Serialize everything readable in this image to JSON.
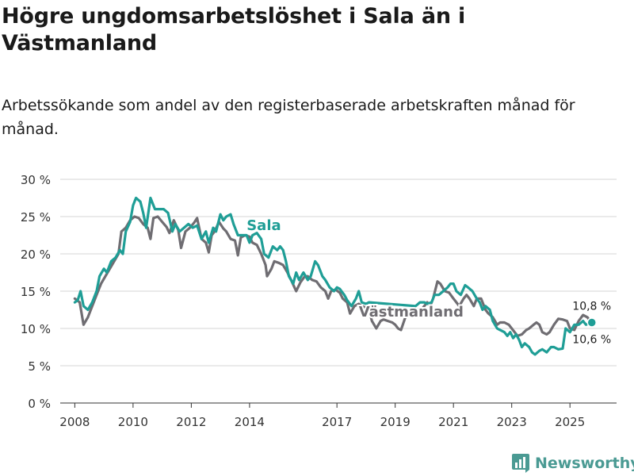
{
  "title": "Högre ungdomsarbetslöshet i Sala än i Västmanland",
  "subtitle": "Arbetssökande som andel av den registerbaserade arbetskraften månad för månad.",
  "brand": {
    "name": "Newsworthy",
    "icon": "bar-chart-logo-icon",
    "color": "#4a9a93"
  },
  "chart_data": {
    "type": "line",
    "x_unit": "year (decimal)",
    "ylim": [
      0,
      30
    ],
    "y_ticks": [
      0,
      5,
      10,
      15,
      20,
      25,
      30
    ],
    "y_tick_labels": [
      "0 %",
      "5 %",
      "10 %",
      "15 %",
      "20 %",
      "25 %",
      "30 %"
    ],
    "x_ticks": [
      2008,
      2010,
      2012,
      2014,
      2017,
      2019,
      2021,
      2023,
      2025
    ],
    "x_tick_labels": [
      "2008",
      "2010",
      "2012",
      "2014",
      "2017",
      "2019",
      "2021",
      "2023",
      "2025"
    ],
    "grid": true,
    "series": [
      {
        "name": "Västmanland",
        "label": "Västmanland",
        "color": "#6f6d72",
        "end_label": "10,6 %",
        "points": [
          [
            2008.0,
            14.0
          ],
          [
            2008.17,
            13.5
          ],
          [
            2008.3,
            10.5
          ],
          [
            2008.45,
            11.5
          ],
          [
            2008.6,
            13.0
          ],
          [
            2008.75,
            14.5
          ],
          [
            2008.9,
            16.0
          ],
          [
            2009.05,
            17.0
          ],
          [
            2009.2,
            18.0
          ],
          [
            2009.35,
            19.0
          ],
          [
            2009.5,
            20.0
          ],
          [
            2009.6,
            23.0
          ],
          [
            2009.75,
            23.5
          ],
          [
            2009.9,
            24.5
          ],
          [
            2010.05,
            25.0
          ],
          [
            2010.2,
            24.8
          ],
          [
            2010.35,
            24.0
          ],
          [
            2010.5,
            23.5
          ],
          [
            2010.6,
            22.0
          ],
          [
            2010.7,
            24.8
          ],
          [
            2010.85,
            25.0
          ],
          [
            2011.0,
            24.3
          ],
          [
            2011.15,
            23.6
          ],
          [
            2011.25,
            22.8
          ],
          [
            2011.4,
            24.5
          ],
          [
            2011.55,
            23.2
          ],
          [
            2011.65,
            20.8
          ],
          [
            2011.8,
            23.0
          ],
          [
            2011.95,
            23.5
          ],
          [
            2012.1,
            24.2
          ],
          [
            2012.2,
            24.8
          ],
          [
            2012.35,
            22.0
          ],
          [
            2012.5,
            21.5
          ],
          [
            2012.6,
            20.2
          ],
          [
            2012.7,
            22.5
          ],
          [
            2012.8,
            23.0
          ],
          [
            2012.95,
            24.3
          ],
          [
            2013.1,
            23.4
          ],
          [
            2013.2,
            23.0
          ],
          [
            2013.35,
            22.0
          ],
          [
            2013.5,
            21.8
          ],
          [
            2013.6,
            19.8
          ],
          [
            2013.7,
            22.2
          ],
          [
            2013.85,
            22.5
          ],
          [
            2014.0,
            22.3
          ],
          [
            2014.1,
            21.5
          ],
          [
            2014.25,
            21.2
          ],
          [
            2014.4,
            20.0
          ],
          [
            2014.55,
            18.5
          ],
          [
            2014.6,
            17.0
          ],
          [
            2014.75,
            18.0
          ],
          [
            2014.85,
            19.0
          ],
          [
            2015.0,
            18.8
          ],
          [
            2015.15,
            18.5
          ],
          [
            2015.3,
            17.5
          ],
          [
            2015.45,
            16.3
          ],
          [
            2015.6,
            15.0
          ],
          [
            2015.75,
            16.2
          ],
          [
            2015.9,
            17.0
          ],
          [
            2016.0,
            17.0
          ],
          [
            2016.15,
            16.5
          ],
          [
            2016.3,
            16.3
          ],
          [
            2016.45,
            15.5
          ],
          [
            2016.6,
            15.0
          ],
          [
            2016.7,
            14.0
          ],
          [
            2016.8,
            15.0
          ],
          [
            2016.95,
            15.2
          ],
          [
            2017.1,
            14.8
          ],
          [
            2017.2,
            14.0
          ],
          [
            2017.35,
            13.5
          ],
          [
            2017.45,
            12.0
          ],
          [
            2017.6,
            13.0
          ],
          [
            2017.75,
            13.3
          ],
          [
            2017.85,
            13.0
          ],
          [
            2018.0,
            12.8
          ],
          [
            2018.1,
            12.5
          ],
          [
            2018.2,
            11.0
          ],
          [
            2018.35,
            10.0
          ],
          [
            2018.5,
            11.0
          ],
          [
            2018.6,
            11.2
          ],
          [
            2018.75,
            11.0
          ],
          [
            2018.9,
            10.8
          ],
          [
            2019.0,
            10.5
          ],
          [
            2019.1,
            10.0
          ],
          [
            2019.2,
            9.8
          ],
          [
            2019.35,
            11.5
          ],
          [
            2019.5,
            12.0
          ],
          [
            2019.6,
            11.8
          ],
          [
            2019.75,
            12.5
          ],
          [
            2019.9,
            12.5
          ],
          [
            2020.0,
            13.0
          ],
          [
            2020.1,
            13.5
          ],
          [
            2020.2,
            13.0
          ],
          [
            2020.3,
            14.0
          ],
          [
            2020.45,
            16.3
          ],
          [
            2020.55,
            16.0
          ],
          [
            2020.7,
            15.0
          ],
          [
            2020.85,
            14.8
          ],
          [
            2021.0,
            14.0
          ],
          [
            2021.1,
            13.5
          ],
          [
            2021.2,
            13.0
          ],
          [
            2021.35,
            14.0
          ],
          [
            2021.45,
            14.5
          ],
          [
            2021.55,
            14.0
          ],
          [
            2021.7,
            13.0
          ],
          [
            2021.8,
            14.0
          ],
          [
            2021.95,
            14.0
          ],
          [
            2022.1,
            12.5
          ],
          [
            2022.2,
            12.0
          ],
          [
            2022.35,
            11.5
          ],
          [
            2022.5,
            10.5
          ],
          [
            2022.6,
            10.8
          ],
          [
            2022.75,
            10.8
          ],
          [
            2022.9,
            10.5
          ],
          [
            2023.0,
            10.0
          ],
          [
            2023.1,
            9.5
          ],
          [
            2023.2,
            9.0
          ],
          [
            2023.35,
            9.2
          ],
          [
            2023.5,
            9.8
          ],
          [
            2023.6,
            10.0
          ],
          [
            2023.75,
            10.5
          ],
          [
            2023.85,
            10.8
          ],
          [
            2023.95,
            10.5
          ],
          [
            2024.05,
            9.5
          ],
          [
            2024.2,
            9.2
          ],
          [
            2024.3,
            9.5
          ],
          [
            2024.45,
            10.5
          ],
          [
            2024.6,
            11.3
          ],
          [
            2024.75,
            11.2
          ],
          [
            2024.9,
            11.0
          ],
          [
            2025.0,
            10.0
          ],
          [
            2025.15,
            9.8
          ],
          [
            2025.3,
            11.0
          ],
          [
            2025.45,
            11.8
          ],
          [
            2025.6,
            11.5
          ],
          [
            2025.75,
            10.6
          ]
        ]
      },
      {
        "name": "Sala",
        "label": "Sala",
        "color": "#1f9e96",
        "end_label": "10,8 %",
        "points": [
          [
            2008.0,
            13.5
          ],
          [
            2008.1,
            13.8
          ],
          [
            2008.2,
            15.0
          ],
          [
            2008.3,
            13.0
          ],
          [
            2008.45,
            12.5
          ],
          [
            2008.6,
            13.5
          ],
          [
            2008.75,
            15.0
          ],
          [
            2008.85,
            17.0
          ],
          [
            2009.0,
            18.0
          ],
          [
            2009.1,
            17.5
          ],
          [
            2009.25,
            19.0
          ],
          [
            2009.4,
            19.5
          ],
          [
            2009.55,
            20.5
          ],
          [
            2009.65,
            20.0
          ],
          [
            2009.75,
            23.0
          ],
          [
            2009.9,
            24.3
          ],
          [
            2010.0,
            26.5
          ],
          [
            2010.1,
            27.5
          ],
          [
            2010.25,
            27.0
          ],
          [
            2010.35,
            25.5
          ],
          [
            2010.45,
            23.5
          ],
          [
            2010.6,
            27.5
          ],
          [
            2010.75,
            26.0
          ],
          [
            2010.9,
            26.0
          ],
          [
            2011.05,
            26.0
          ],
          [
            2011.2,
            25.5
          ],
          [
            2011.35,
            23.0
          ],
          [
            2011.45,
            24.0
          ],
          [
            2011.6,
            23.0
          ],
          [
            2011.75,
            23.5
          ],
          [
            2011.9,
            24.0
          ],
          [
            2012.05,
            23.5
          ],
          [
            2012.2,
            23.8
          ],
          [
            2012.35,
            22.0
          ],
          [
            2012.5,
            23.0
          ],
          [
            2012.6,
            21.5
          ],
          [
            2012.75,
            23.5
          ],
          [
            2012.85,
            23.0
          ],
          [
            2013.0,
            25.3
          ],
          [
            2013.1,
            24.5
          ],
          [
            2013.2,
            25.0
          ],
          [
            2013.35,
            25.3
          ],
          [
            2013.45,
            24.0
          ],
          [
            2013.6,
            22.5
          ],
          [
            2013.75,
            22.5
          ],
          [
            2013.9,
            22.5
          ],
          [
            2014.0,
            21.5
          ],
          [
            2014.1,
            22.5
          ],
          [
            2014.25,
            22.8
          ],
          [
            2014.4,
            22.0
          ],
          [
            2014.5,
            20.0
          ],
          [
            2014.65,
            19.5
          ],
          [
            2014.8,
            21.0
          ],
          [
            2014.95,
            20.5
          ],
          [
            2015.05,
            21.0
          ],
          [
            2015.15,
            20.5
          ],
          [
            2015.25,
            19.0
          ],
          [
            2015.35,
            17.0
          ],
          [
            2015.5,
            16.0
          ],
          [
            2015.6,
            17.5
          ],
          [
            2015.7,
            16.5
          ],
          [
            2015.85,
            17.5
          ],
          [
            2016.0,
            16.5
          ],
          [
            2016.1,
            17.0
          ],
          [
            2016.25,
            19.0
          ],
          [
            2016.35,
            18.5
          ],
          [
            2016.5,
            17.0
          ],
          [
            2016.6,
            16.5
          ],
          [
            2016.75,
            15.5
          ],
          [
            2016.9,
            15.0
          ],
          [
            2017.0,
            15.5
          ],
          [
            2017.1,
            15.3
          ],
          [
            2017.25,
            14.5
          ],
          [
            2017.35,
            13.8
          ],
          [
            2017.5,
            13.0
          ],
          [
            2017.65,
            14.0
          ],
          [
            2017.75,
            15.0
          ],
          [
            2017.85,
            13.5
          ],
          [
            2018.0,
            13.3
          ],
          [
            2018.1,
            13.5
          ],
          [
            2019.7,
            13.0
          ],
          [
            2019.85,
            13.5
          ],
          [
            2020.0,
            13.5
          ],
          [
            2020.1,
            13.3
          ],
          [
            2020.25,
            13.5
          ],
          [
            2020.35,
            14.5
          ],
          [
            2020.5,
            14.5
          ],
          [
            2020.65,
            15.0
          ],
          [
            2020.8,
            15.5
          ],
          [
            2020.9,
            16.0
          ],
          [
            2021.0,
            16.0
          ],
          [
            2021.1,
            15.0
          ],
          [
            2021.25,
            14.5
          ],
          [
            2021.4,
            15.8
          ],
          [
            2021.5,
            15.5
          ],
          [
            2021.65,
            15.0
          ],
          [
            2021.8,
            14.0
          ],
          [
            2021.9,
            13.5
          ],
          [
            2022.0,
            12.5
          ],
          [
            2022.1,
            13.0
          ],
          [
            2022.25,
            12.5
          ],
          [
            2022.35,
            11.0
          ],
          [
            2022.5,
            10.0
          ],
          [
            2022.6,
            9.8
          ],
          [
            2022.75,
            9.5
          ],
          [
            2022.85,
            9.0
          ],
          [
            2022.95,
            9.5
          ],
          [
            2023.05,
            8.7
          ],
          [
            2023.15,
            9.2
          ],
          [
            2023.25,
            8.5
          ],
          [
            2023.35,
            7.5
          ],
          [
            2023.45,
            8.0
          ],
          [
            2023.6,
            7.5
          ],
          [
            2023.7,
            6.8
          ],
          [
            2023.8,
            6.5
          ],
          [
            2023.95,
            7.0
          ],
          [
            2024.05,
            7.2
          ],
          [
            2024.2,
            6.8
          ],
          [
            2024.35,
            7.5
          ],
          [
            2024.45,
            7.5
          ],
          [
            2024.6,
            7.2
          ],
          [
            2024.75,
            7.3
          ],
          [
            2024.85,
            10.0
          ],
          [
            2025.0,
            9.5
          ],
          [
            2025.15,
            10.5
          ],
          [
            2025.3,
            10.5
          ],
          [
            2025.45,
            11.0
          ],
          [
            2025.55,
            10.5
          ],
          [
            2025.75,
            10.8
          ]
        ]
      }
    ]
  }
}
